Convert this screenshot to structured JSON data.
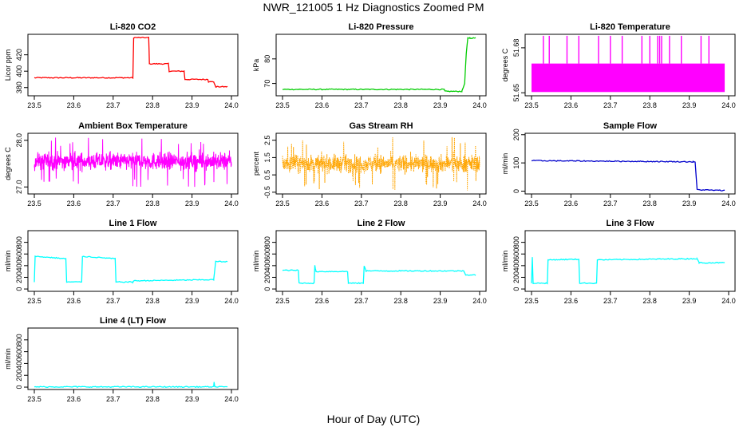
{
  "figure": {
    "title": "NWR_121005  1 Hz Diagnostics Zoomed PM",
    "xlabel": "Hour of Day (UTC)"
  },
  "chart_data": [
    {
      "type": "line",
      "title": "Li-820 CO2",
      "ylabel": "Licor ppm",
      "color": "#ff0000",
      "xlim": [
        23.5,
        24.0
      ],
      "ylim": [
        370,
        445
      ],
      "xticks": [
        "23.5",
        "23.6",
        "23.7",
        "23.8",
        "23.9",
        "24.0"
      ],
      "yticks": [
        "380",
        "400",
        "420"
      ],
      "series": [
        {
          "x": [
            23.5,
            23.75,
            23.752,
            23.79,
            23.792,
            23.84,
            23.842,
            23.88,
            23.882,
            23.94,
            23.942,
            23.955,
            23.96,
            23.962,
            23.99
          ],
          "y": [
            392,
            392,
            441,
            441,
            409,
            409,
            400,
            400,
            390,
            390,
            387,
            387,
            381,
            381,
            381
          ]
        }
      ]
    },
    {
      "type": "line",
      "title": "Li-820 Pressure",
      "ylabel": "kPa",
      "color": "#00cc00",
      "xlim": [
        23.5,
        24.0
      ],
      "ylim": [
        65,
        90
      ],
      "xticks": [
        "23.5",
        "23.6",
        "23.7",
        "23.8",
        "23.9",
        "24.0"
      ],
      "yticks": [
        "70",
        "80"
      ],
      "series": [
        {
          "x": [
            23.5,
            23.91,
            23.912,
            23.955,
            23.962,
            23.966,
            23.97,
            23.975,
            23.99
          ],
          "y": [
            67.6,
            67.6,
            66.8,
            66.8,
            70,
            82,
            88.5,
            88.5,
            88.5
          ]
        }
      ]
    },
    {
      "type": "line",
      "title": "Li-820 Temperature",
      "ylabel": "degrees C",
      "color": "#ff00ff",
      "xlim": [
        23.5,
        24.0
      ],
      "ylim": [
        51.648,
        51.689
      ],
      "xticks": [
        "23.5",
        "23.6",
        "23.7",
        "23.8",
        "23.9",
        "24.0"
      ],
      "yticks": [
        "51.65",
        "51.68"
      ],
      "band": [
        51.6505,
        51.6695
      ],
      "spikes_x": [
        23.53,
        23.545,
        23.59,
        23.62,
        23.67,
        23.7,
        23.73,
        23.78,
        23.8,
        23.82,
        23.825,
        23.83,
        23.85,
        23.88,
        23.93,
        23.95
      ],
      "spike_top": 51.688
    },
    {
      "type": "line",
      "title": "Ambient Box Temperature",
      "ylabel": "degrees C",
      "color": "#ff00ff",
      "xlim": [
        23.5,
        24.0
      ],
      "ylim": [
        26.85,
        28.15
      ],
      "xticks": [
        "23.5",
        "23.6",
        "23.7",
        "23.8",
        "23.9",
        "24.0"
      ],
      "yticks": [
        "27.0",
        "28.0"
      ],
      "noise": {
        "mean": 27.55,
        "sd": 0.13,
        "min": 26.9,
        "max": 28.1
      }
    },
    {
      "type": "line",
      "title": "Gas Stream RH",
      "ylabel": "percent",
      "color": "#ffa500",
      "xlim": [
        23.5,
        24.0
      ],
      "ylim": [
        -0.6,
        2.9
      ],
      "xticks": [
        "23.5",
        "23.6",
        "23.7",
        "23.8",
        "23.9",
        "24.0"
      ],
      "yticks": [
        "-0.5",
        "0.5",
        "1.5",
        "2.5"
      ],
      "noise": {
        "mean": 1.15,
        "sd": 0.35,
        "min": -0.5,
        "max": 2.7
      }
    },
    {
      "type": "line",
      "title": "Sample Flow",
      "ylabel": "ml/min",
      "color": "#0000cc",
      "xlim": [
        23.5,
        24.0
      ],
      "ylim": [
        -10,
        205
      ],
      "xticks": [
        "23.5",
        "23.6",
        "23.7",
        "23.8",
        "23.9",
        "24.0"
      ],
      "yticks": [
        "0",
        "100",
        "200"
      ],
      "series": [
        {
          "x": [
            23.5,
            23.91,
            23.915,
            23.92,
            23.99
          ],
          "y": [
            108,
            104,
            104,
            5,
            2
          ]
        }
      ]
    },
    {
      "type": "line",
      "title": "Line 1 Flow",
      "ylabel": "ml/min",
      "color": "#00ffff",
      "xlim": [
        23.5,
        24.0
      ],
      "ylim": [
        -40,
        1000
      ],
      "xticks": [
        "23.5",
        "23.6",
        "23.7",
        "23.8",
        "23.9",
        "24.0"
      ],
      "yticks": [
        "0",
        "200",
        "400",
        "600",
        "800"
      ],
      "series": [
        {
          "x": [
            23.5,
            23.502,
            23.58,
            23.582,
            23.62,
            23.622,
            23.705,
            23.707,
            23.75,
            23.752,
            23.955,
            23.96,
            23.99
          ],
          "y": [
            120,
            560,
            520,
            120,
            120,
            560,
            520,
            120,
            120,
            140,
            160,
            470,
            470
          ]
        }
      ]
    },
    {
      "type": "line",
      "title": "Line 2 Flow",
      "ylabel": "ml/min",
      "color": "#00ffff",
      "xlim": [
        23.5,
        24.0
      ],
      "ylim": [
        -40,
        1000
      ],
      "xticks": [
        "23.5",
        "23.6",
        "23.7",
        "23.8",
        "23.9",
        "24.0"
      ],
      "yticks": [
        "0",
        "200",
        "400",
        "600",
        "800"
      ],
      "series": [
        {
          "x": [
            23.5,
            23.54,
            23.542,
            23.58,
            23.582,
            23.585,
            23.665,
            23.667,
            23.705,
            23.707,
            23.712,
            23.96,
            23.965,
            23.99
          ],
          "y": [
            320,
            320,
            100,
            100,
            400,
            300,
            300,
            100,
            100,
            400,
            310,
            310,
            240,
            240
          ]
        }
      ]
    },
    {
      "type": "line",
      "title": "Line 3 Flow",
      "ylabel": "ml/min",
      "color": "#00ffff",
      "xlim": [
        23.5,
        24.0
      ],
      "ylim": [
        -40,
        1000
      ],
      "xticks": [
        "23.5",
        "23.6",
        "23.7",
        "23.8",
        "23.9",
        "24.0"
      ],
      "yticks": [
        "0",
        "200",
        "400",
        "600",
        "800"
      ],
      "series": [
        {
          "x": [
            23.5,
            23.502,
            23.504,
            23.54,
            23.542,
            23.62,
            23.622,
            23.665,
            23.667,
            23.92,
            23.925,
            23.99
          ],
          "y": [
            100,
            540,
            100,
            100,
            500,
            510,
            100,
            100,
            500,
            520,
            450,
            450
          ]
        }
      ]
    },
    {
      "type": "line",
      "title": "Line 4 (LT) Flow",
      "ylabel": "ml/min",
      "color": "#00ffff",
      "xlim": [
        23.5,
        24.0
      ],
      "ylim": [
        -40,
        1000
      ],
      "xticks": [
        "23.5",
        "23.6",
        "23.7",
        "23.8",
        "23.9",
        "24.0"
      ],
      "yticks": [
        "0",
        "200",
        "400",
        "600",
        "800"
      ],
      "series": [
        {
          "x": [
            23.5,
            23.955,
            23.956,
            23.958,
            23.99
          ],
          "y": [
            5,
            5,
            80,
            5,
            5
          ]
        }
      ]
    }
  ]
}
